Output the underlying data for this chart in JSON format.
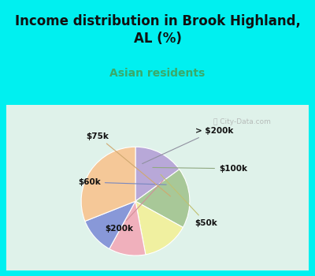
{
  "title": "Income distribution in Brook Highland,\nAL (%)",
  "subtitle": "Asian residents",
  "title_color": "#111111",
  "subtitle_color": "#3aaa6a",
  "background_color": "#00f0f0",
  "panel_color": "#e8f5ee",
  "labels": [
    "> $200k",
    "$100k",
    "$50k",
    "$200k",
    "$60k",
    "$75k"
  ],
  "sizes": [
    15,
    18,
    14,
    11,
    11,
    31
  ],
  "colors": [
    "#b8a8d8",
    "#a8c898",
    "#f0f0a0",
    "#f0b0bc",
    "#8898d8",
    "#f5c898"
  ],
  "startangle": 90,
  "watermark": "ⓘ City-Data.com"
}
